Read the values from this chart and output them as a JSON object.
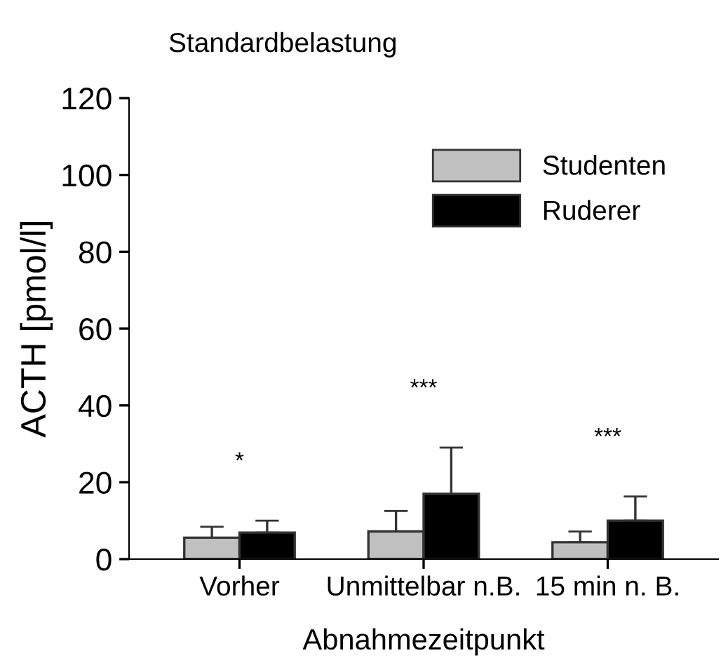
{
  "chart_data": {
    "type": "bar",
    "title": "Standardbelastung",
    "xlabel": "Abnahmezeitpunkt",
    "ylabel": "ACTH [pmol/l]",
    "categories": [
      "Vorher",
      "Unmittelbar n.B.",
      "15 min n. B."
    ],
    "series": [
      {
        "name": "Studenten",
        "color": "#c0c0c0",
        "values": [
          5.6,
          7.2,
          4.4
        ],
        "errors": [
          2.8,
          5.3,
          2.8
        ]
      },
      {
        "name": "Ruderer",
        "color": "#000000",
        "values": [
          6.9,
          17,
          10
        ],
        "errors": [
          3.1,
          12,
          6.3
        ]
      }
    ],
    "annotations": [
      "*",
      "***",
      "***"
    ],
    "ylim": [
      0,
      120
    ],
    "yticks": [
      0,
      20,
      40,
      60,
      80,
      100,
      120
    ],
    "grid": false,
    "legend": "top right"
  }
}
